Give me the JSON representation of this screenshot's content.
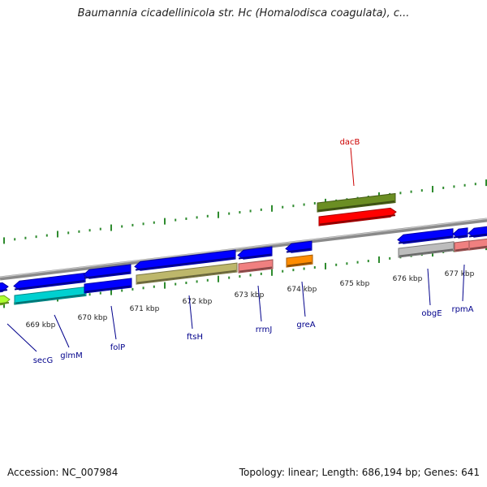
{
  "title": "Baumannia cicadellinicola str. Hc (Homalodisca coagulata), c...",
  "footer": {
    "accession": "Accession: NC_007984",
    "summary": "Topology: linear; Length: 686,194 bp; Genes: 641"
  },
  "colors": {
    "backbone": "#8a8a8a",
    "tick": "#2e8b2e",
    "label_blue": "#00008b",
    "label_red": "#cc0000",
    "gene_blue": "#0000ff",
    "gene_red": "#ff0000",
    "gene_olive": "#6b8e23",
    "gene_cyan": "#00d0d0",
    "gene_khaki": "#bdb76b",
    "gene_salmon": "#f08080",
    "gene_orange": "#ff8c00",
    "gene_lightgray": "#bdbdbd",
    "gene_lime": "#adff2f"
  },
  "axis": {
    "ticks": [
      {
        "label": "669 kbp"
      },
      {
        "label": "670 kbp"
      },
      {
        "label": "671 kbp"
      },
      {
        "label": "672 kbp"
      },
      {
        "label": "673 kbp"
      },
      {
        "label": "674 kbp"
      },
      {
        "label": "675 kbp"
      },
      {
        "label": "676 kbp"
      },
      {
        "label": "677 kbp"
      }
    ]
  },
  "genes": [
    {
      "name": "secG"
    },
    {
      "name": "glmM"
    },
    {
      "name": "folP"
    },
    {
      "name": "ftsH"
    },
    {
      "name": "rrmJ"
    },
    {
      "name": "greA"
    },
    {
      "name": "dacB"
    },
    {
      "name": "obgE"
    },
    {
      "name": "rpmA"
    }
  ]
}
